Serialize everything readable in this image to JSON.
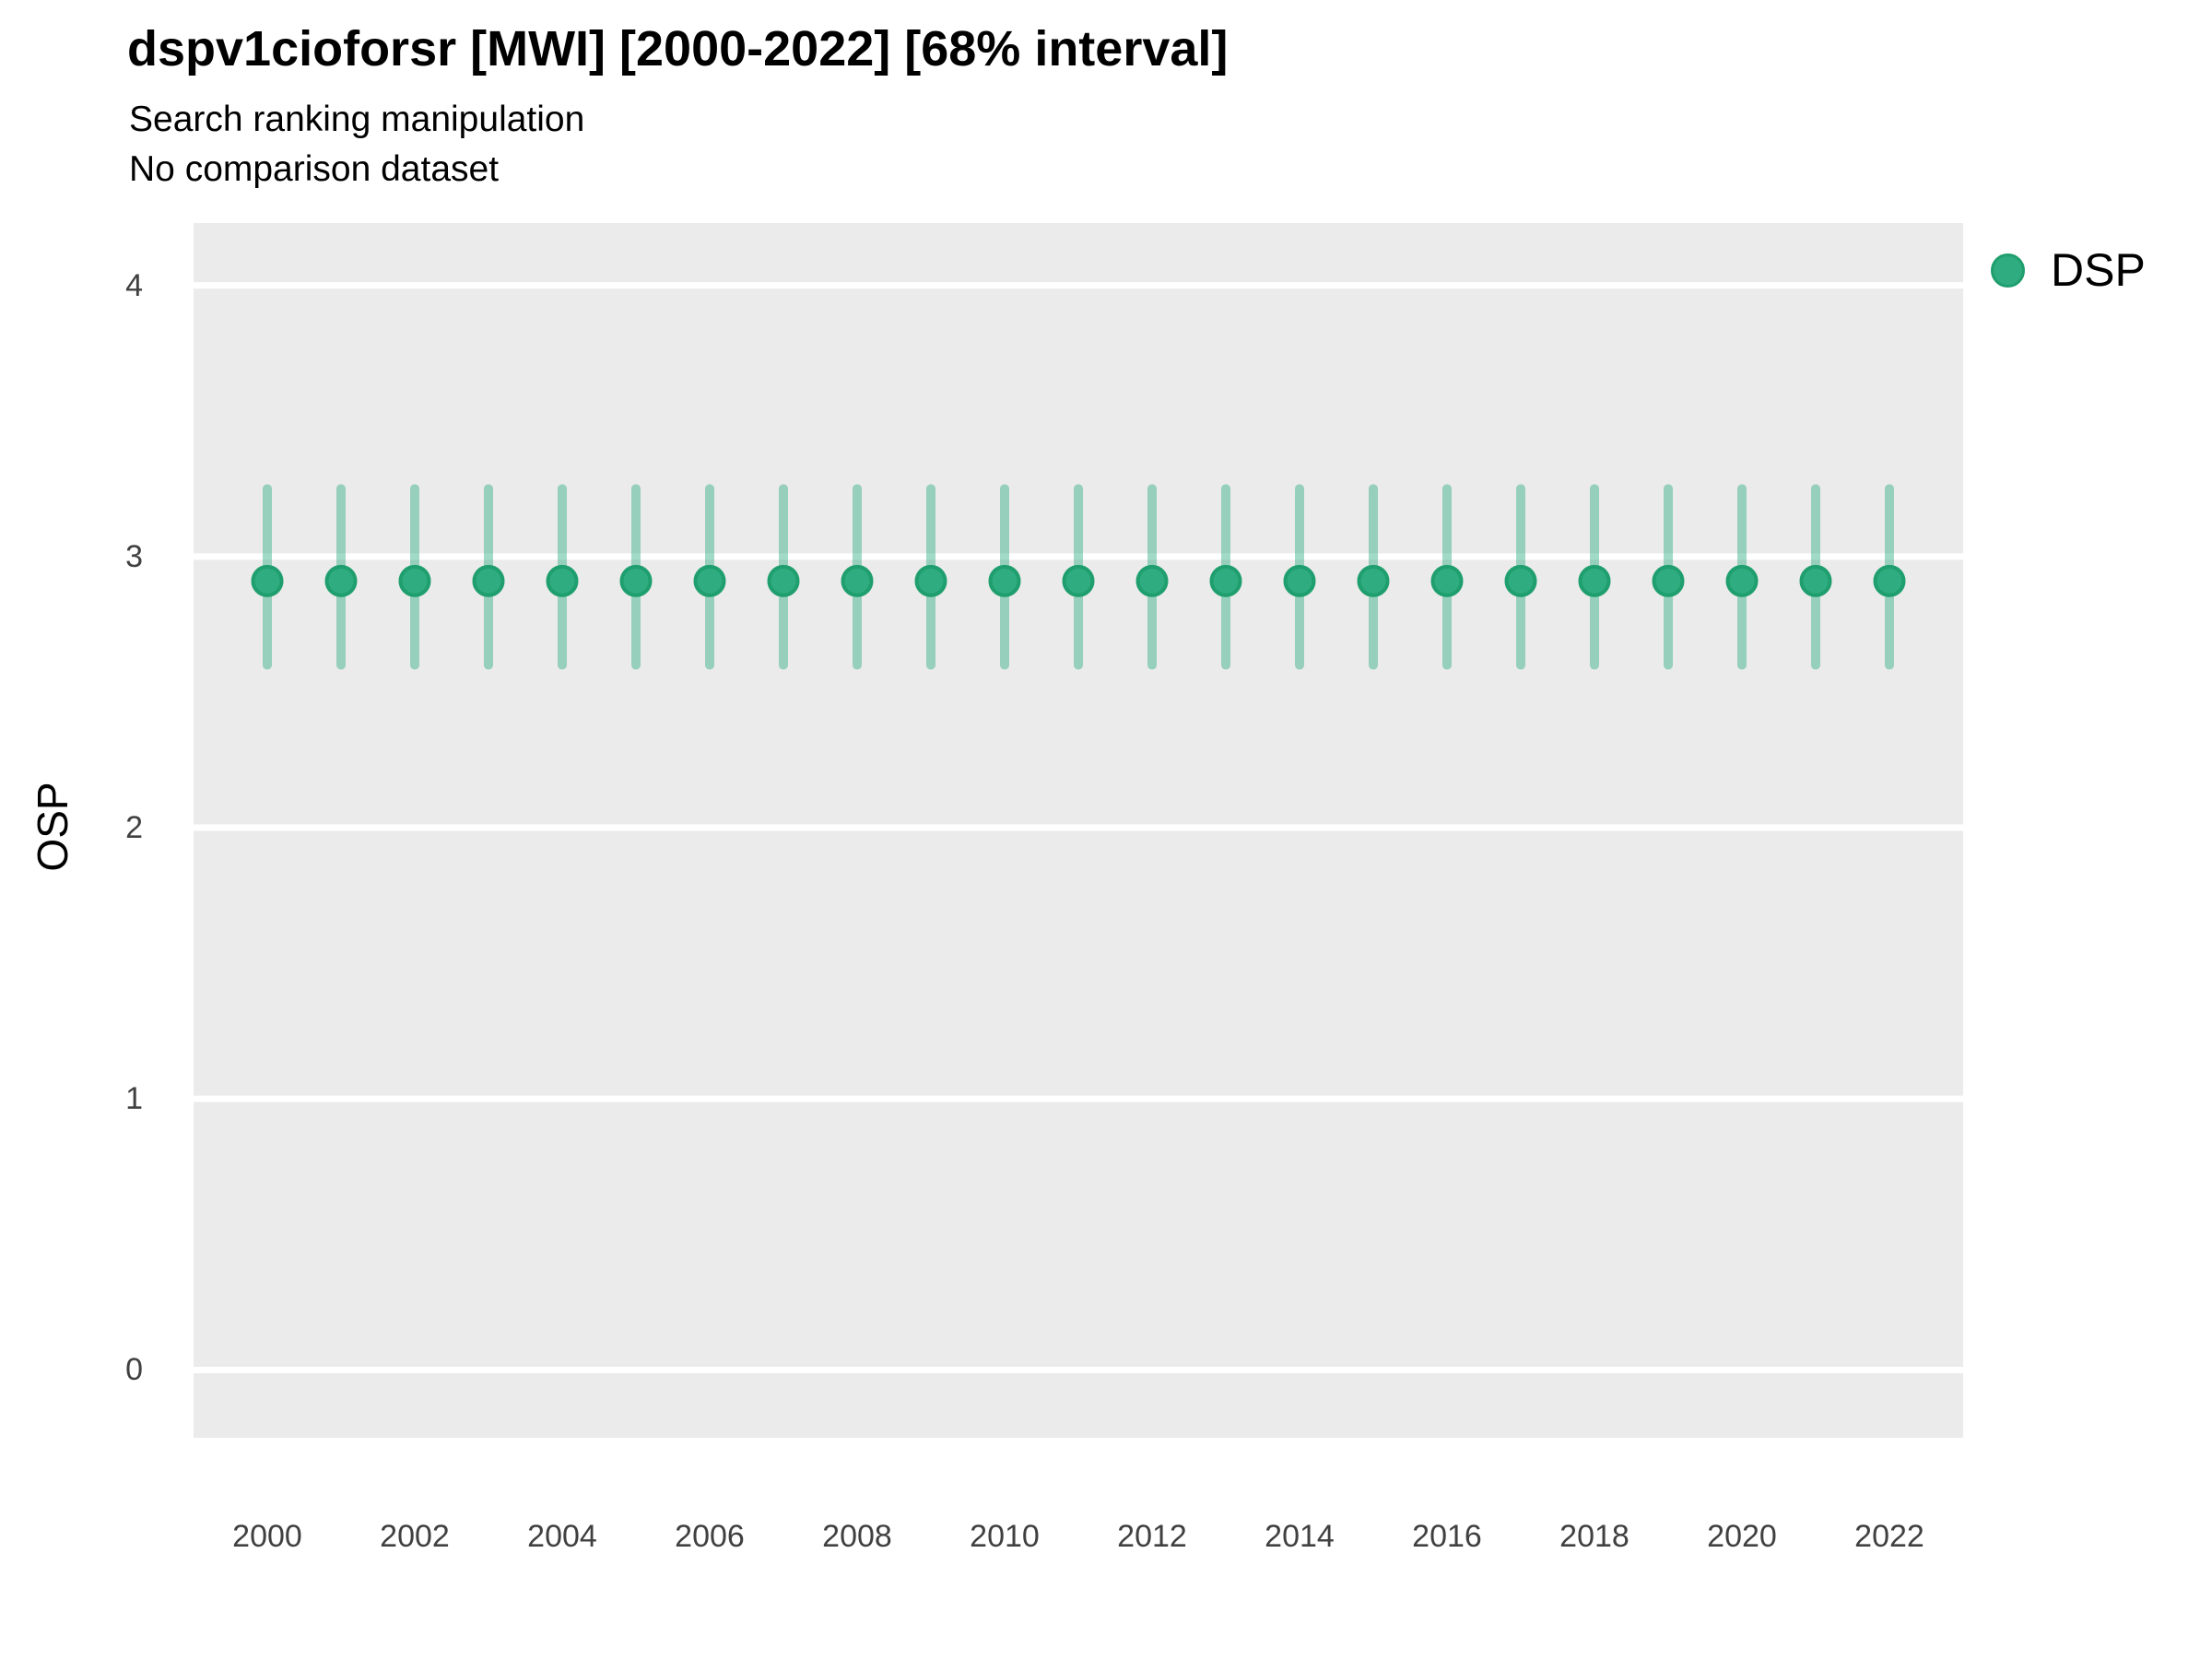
{
  "header": {
    "title": "dspv1cioforsr [MWI] [2000-2022] [68% interval]",
    "subtitle": "Search ranking manipulation",
    "note": "No comparison dataset"
  },
  "chart_data": {
    "type": "pointrange",
    "title": "dspv1cioforsr [MWI] [2000-2022] [68% interval]",
    "subtitle": "Search ranking manipulation",
    "note": "No comparison dataset",
    "interval_label": "68% interval",
    "country": "MWI",
    "xlabel": "",
    "ylabel": "OSP",
    "legend_position": "right-top",
    "grid": "horizontal-major-only",
    "xlim": [
      1999,
      2023
    ],
    "ylim": [
      -0.25,
      4.23
    ],
    "yticks": [
      0,
      1,
      2,
      3,
      4
    ],
    "xticks": [
      2000,
      2002,
      2004,
      2006,
      2008,
      2010,
      2012,
      2014,
      2016,
      2018,
      2020,
      2022
    ],
    "series": [
      {
        "name": "DSP",
        "x": [
          2000,
          2001,
          2002,
          2003,
          2004,
          2005,
          2006,
          2007,
          2008,
          2009,
          2010,
          2011,
          2012,
          2013,
          2014,
          2015,
          2016,
          2017,
          2018,
          2019,
          2020,
          2021,
          2022
        ],
        "point": [
          2.91,
          2.91,
          2.91,
          2.91,
          2.91,
          2.91,
          2.91,
          2.91,
          2.91,
          2.91,
          2.91,
          2.91,
          2.91,
          2.91,
          2.91,
          2.91,
          2.91,
          2.91,
          2.91,
          2.91,
          2.91,
          2.91,
          2.91
        ],
        "lower": [
          2.6,
          2.6,
          2.6,
          2.6,
          2.6,
          2.6,
          2.6,
          2.6,
          2.6,
          2.6,
          2.6,
          2.6,
          2.6,
          2.6,
          2.6,
          2.6,
          2.6,
          2.6,
          2.6,
          2.6,
          2.6,
          2.6,
          2.6
        ],
        "upper": [
          3.25,
          3.25,
          3.25,
          3.25,
          3.25,
          3.25,
          3.25,
          3.25,
          3.25,
          3.25,
          3.25,
          3.25,
          3.25,
          3.25,
          3.25,
          3.25,
          3.25,
          3.25,
          3.25,
          3.25,
          3.25,
          3.25,
          3.25
        ]
      }
    ],
    "colors": {
      "point_fill": "#2fac80",
      "point_stroke": "#1f9e6e",
      "interval_line": "rgba(47,172,128,0.45)",
      "panel_bg": "#ebebeb",
      "gridline": "#ffffff",
      "tick_text": "#404040",
      "title_text": "#000000"
    }
  }
}
